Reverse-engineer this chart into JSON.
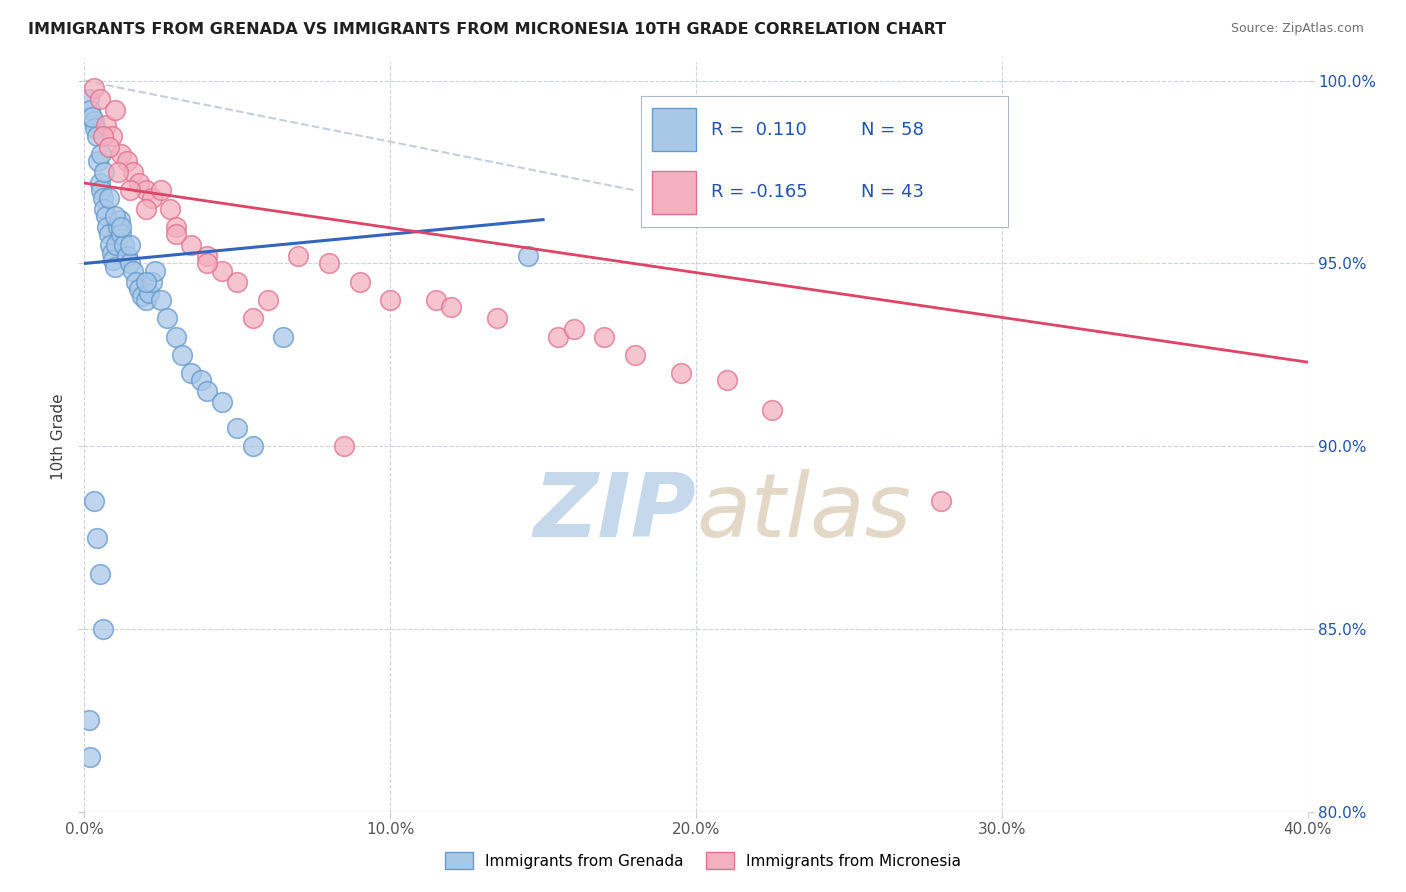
{
  "title": "IMMIGRANTS FROM GRENADA VS IMMIGRANTS FROM MICRONESIA 10TH GRADE CORRELATION CHART",
  "source": "Source: ZipAtlas.com",
  "ylabel": "10th Grade",
  "xlim": [
    0.0,
    40.0
  ],
  "ylim": [
    80.0,
    100.5
  ],
  "ytick_values": [
    100.0,
    95.0,
    90.0,
    85.0,
    80.0
  ],
  "xtick_values": [
    0.0,
    10.0,
    20.0,
    30.0,
    40.0
  ],
  "grenada_color": "#a8c8e8",
  "grenada_edge_color": "#6699cc",
  "micronesia_color": "#f4b0c0",
  "micronesia_edge_color": "#e07090",
  "trend_blue": "#3366bb",
  "trend_pink": "#dd4466",
  "r_grenada": 0.11,
  "n_grenada": 58,
  "r_micronesia": -0.165,
  "n_micronesia": 43,
  "legend_color": "#2255aa",
  "watermark_zip": "ZIP",
  "watermark_atlas": "atlas",
  "watermark_color": "#c5d8ec",
  "background_color": "#ffffff",
  "grid_color": "#c8d0d8",
  "grenada_x": [
    0.15,
    0.2,
    0.3,
    0.35,
    0.4,
    0.45,
    0.5,
    0.55,
    0.6,
    0.65,
    0.7,
    0.75,
    0.8,
    0.85,
    0.9,
    0.95,
    1.0,
    1.05,
    1.1,
    1.15,
    1.2,
    1.3,
    1.4,
    1.5,
    1.6,
    1.7,
    1.8,
    1.9,
    2.0,
    2.1,
    2.2,
    2.3,
    2.5,
    2.7,
    3.0,
    3.2,
    3.5,
    3.8,
    4.0,
    4.5,
    5.0,
    5.5,
    6.5,
    0.25,
    0.55,
    0.65,
    0.8,
    1.0,
    1.2,
    1.5,
    2.0,
    0.15,
    0.2,
    0.3,
    0.4,
    0.5,
    0.6,
    14.5
  ],
  "grenada_y": [
    99.5,
    99.2,
    98.9,
    98.7,
    98.5,
    97.8,
    97.2,
    97.0,
    96.8,
    96.5,
    96.3,
    96.0,
    95.8,
    95.5,
    95.3,
    95.1,
    94.9,
    95.5,
    96.0,
    96.2,
    95.8,
    95.5,
    95.2,
    95.0,
    94.8,
    94.5,
    94.3,
    94.1,
    94.0,
    94.2,
    94.5,
    94.8,
    94.0,
    93.5,
    93.0,
    92.5,
    92.0,
    91.8,
    91.5,
    91.2,
    90.5,
    90.0,
    93.0,
    99.0,
    98.0,
    97.5,
    96.8,
    96.3,
    96.0,
    95.5,
    94.5,
    82.5,
    81.5,
    88.5,
    87.5,
    86.5,
    85.0,
    95.2
  ],
  "micronesia_x": [
    0.3,
    0.5,
    0.7,
    0.9,
    1.0,
    1.2,
    1.4,
    1.6,
    1.8,
    2.0,
    2.2,
    2.5,
    2.8,
    3.0,
    3.5,
    4.0,
    4.5,
    5.0,
    6.0,
    7.0,
    8.0,
    9.0,
    10.0,
    11.5,
    12.0,
    13.5,
    15.5,
    16.0,
    17.0,
    18.0,
    19.5,
    21.0,
    22.5,
    0.6,
    0.8,
    1.1,
    1.5,
    2.0,
    3.0,
    4.0,
    28.0,
    5.5,
    8.5
  ],
  "micronesia_y": [
    99.8,
    99.5,
    98.8,
    98.5,
    99.2,
    98.0,
    97.8,
    97.5,
    97.2,
    97.0,
    96.8,
    97.0,
    96.5,
    96.0,
    95.5,
    95.2,
    94.8,
    94.5,
    94.0,
    95.2,
    95.0,
    94.5,
    94.0,
    94.0,
    93.8,
    93.5,
    93.0,
    93.2,
    93.0,
    92.5,
    92.0,
    91.8,
    91.0,
    98.5,
    98.2,
    97.5,
    97.0,
    96.5,
    95.8,
    95.0,
    88.5,
    93.5,
    90.0
  ],
  "diag_line_x": [
    0.0,
    18.0
  ],
  "diag_line_y": [
    100.0,
    97.0
  ]
}
